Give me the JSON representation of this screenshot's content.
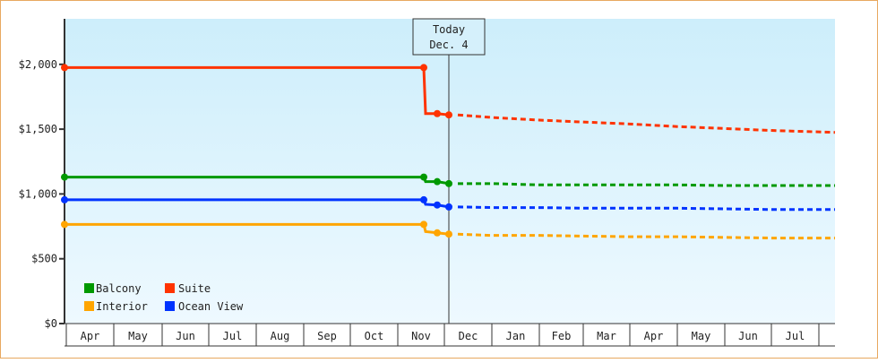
{
  "chart_data": {
    "type": "line",
    "title": "",
    "xlabel": "",
    "ylabel": "",
    "ylim": [
      0,
      2300
    ],
    "yticks": [
      0,
      500,
      1000,
      1500,
      2000
    ],
    "ytick_labels": [
      "$0",
      "$500",
      "$1,000",
      "$1,500",
      "$2,000"
    ],
    "categories": [
      "Apr",
      "May",
      "Jun",
      "Jul",
      "Aug",
      "Sep",
      "Oct",
      "Nov",
      "Dec",
      "Jan",
      "Feb",
      "Mar",
      "Apr",
      "May",
      "Jun",
      "Jul"
    ],
    "today_marker": {
      "line1": "Today",
      "line2": "Dec. 4"
    },
    "legend": [
      {
        "name": "Balcony",
        "color": "#009900"
      },
      {
        "name": "Suite",
        "color": "#ff3300"
      },
      {
        "name": "Interior",
        "color": "#ffa500"
      },
      {
        "name": "Ocean View",
        "color": "#0033ff"
      }
    ],
    "series": [
      {
        "name": "Suite",
        "color": "#ff3300",
        "historical": [
          [
            "Apr",
            1975
          ],
          [
            "Nov-early",
            1975
          ],
          [
            "Nov-mid",
            1620
          ],
          [
            "Nov-late",
            1620
          ],
          [
            "Dec 4",
            1610
          ]
        ],
        "projected": [
          [
            "Dec",
            1610
          ],
          [
            "Jan",
            1590
          ],
          [
            "Feb",
            1570
          ],
          [
            "Mar",
            1555
          ],
          [
            "Apr",
            1540
          ],
          [
            "May",
            1520
          ],
          [
            "Jun",
            1505
          ],
          [
            "Jul",
            1490
          ],
          [
            "Aug",
            1475
          ]
        ]
      },
      {
        "name": "Balcony",
        "color": "#009900",
        "historical": [
          [
            "Apr",
            1130
          ],
          [
            "Nov-early",
            1130
          ],
          [
            "Nov-mid",
            1095
          ],
          [
            "Nov-late",
            1095
          ],
          [
            "Dec 4",
            1080
          ]
        ],
        "projected": [
          [
            "Dec",
            1080
          ],
          [
            "Jan",
            1080
          ],
          [
            "Feb",
            1070
          ],
          [
            "Mar",
            1070
          ],
          [
            "Apr",
            1070
          ],
          [
            "May",
            1070
          ],
          [
            "Jun",
            1065
          ],
          [
            "Jul",
            1065
          ],
          [
            "Aug",
            1065
          ]
        ]
      },
      {
        "name": "Ocean View",
        "color": "#0033ff",
        "historical": [
          [
            "Apr",
            955
          ],
          [
            "Nov-early",
            955
          ],
          [
            "Nov-mid",
            920
          ],
          [
            "Nov-late",
            915
          ],
          [
            "Dec 4",
            900
          ]
        ],
        "projected": [
          [
            "Dec",
            900
          ],
          [
            "Jan",
            895
          ],
          [
            "Feb",
            895
          ],
          [
            "Mar",
            890
          ],
          [
            "Apr",
            890
          ],
          [
            "May",
            890
          ],
          [
            "Jun",
            885
          ],
          [
            "Jul",
            880
          ],
          [
            "Aug",
            880
          ]
        ]
      },
      {
        "name": "Interior",
        "color": "#ffa500",
        "historical": [
          [
            "Apr",
            765
          ],
          [
            "Nov-early",
            765
          ],
          [
            "Nov-mid",
            710
          ],
          [
            "Nov-late",
            700
          ],
          [
            "Dec 4",
            690
          ]
        ],
        "projected": [
          [
            "Dec",
            690
          ],
          [
            "Jan",
            680
          ],
          [
            "Feb",
            680
          ],
          [
            "Mar",
            675
          ],
          [
            "Apr",
            670
          ],
          [
            "May",
            670
          ],
          [
            "Jun",
            665
          ],
          [
            "Jul",
            660
          ],
          [
            "Aug",
            660
          ]
        ]
      }
    ],
    "legend_position": "lower-left inside plot",
    "grid": false
  }
}
